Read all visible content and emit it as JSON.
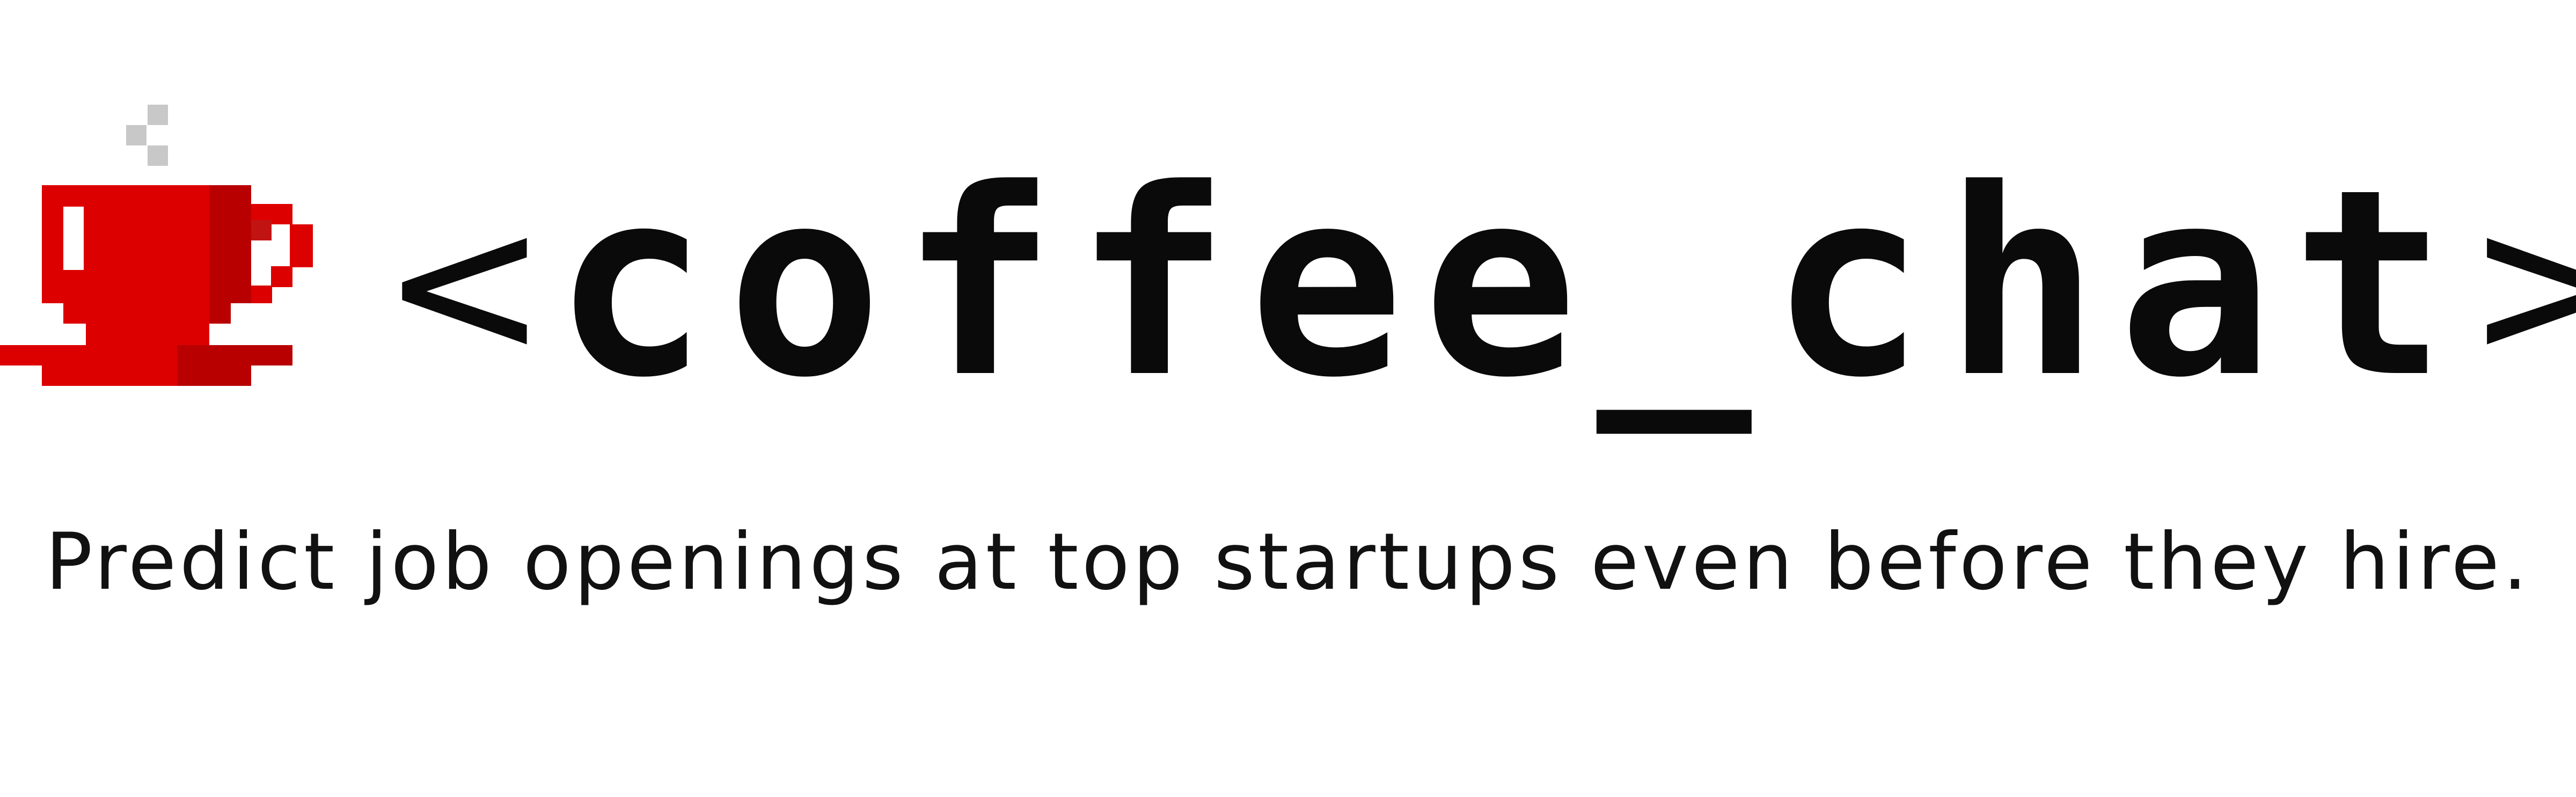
{
  "brand": {
    "open_bracket": "<",
    "name": "coffee_chat",
    "close_bracket": ">",
    "logo_icon": "pixel-coffee-cup-icon"
  },
  "tagline": "Predict job openings at top startups even before they hire.",
  "colors": {
    "cup_red": "#dd0000",
    "cup_dark_red": "#b80000",
    "steam_gray": "#c8c8c8",
    "text": "#0a0a0a",
    "background": "#ffffff"
  }
}
